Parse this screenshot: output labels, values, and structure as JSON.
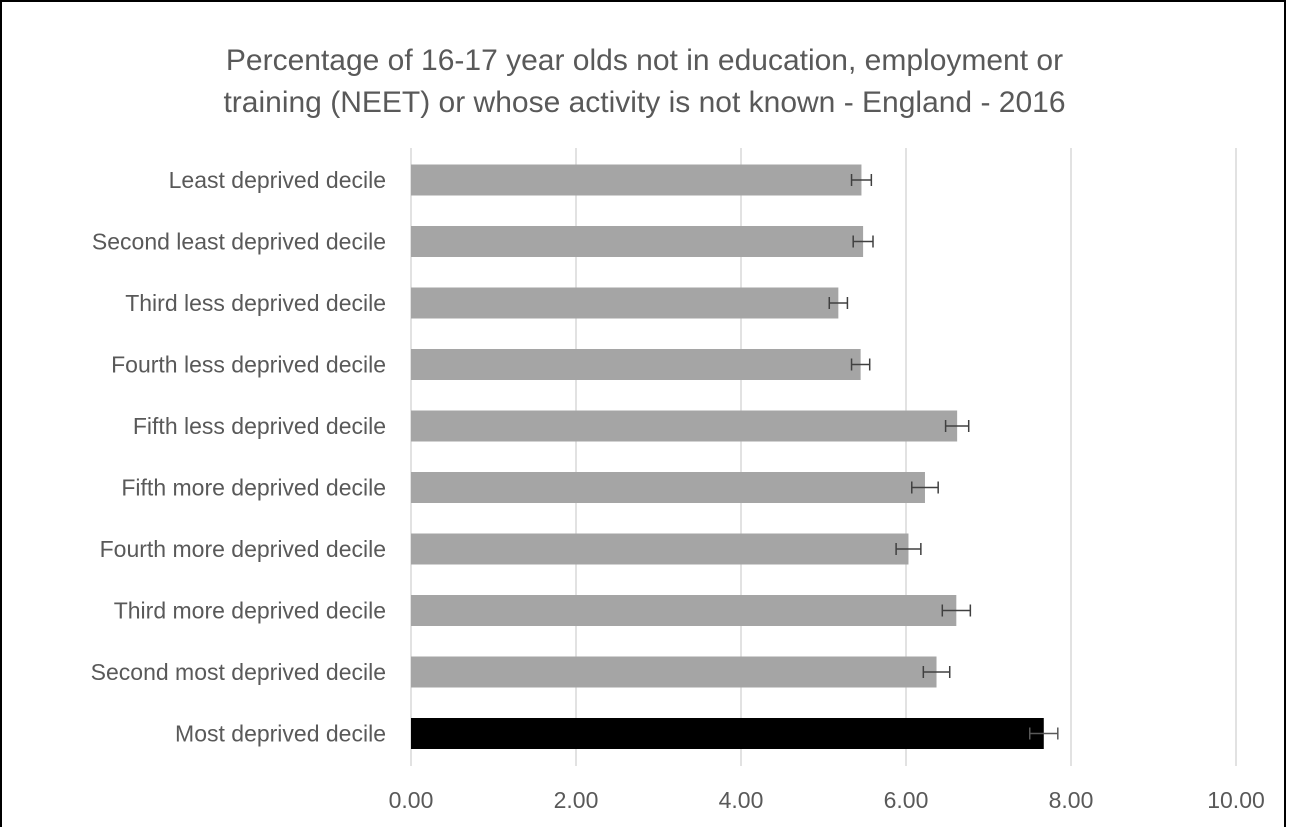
{
  "chart_data": {
    "type": "bar",
    "orientation": "horizontal",
    "title": "Percentage of 16-17 year olds not in education, employment or training (NEET) or whose activity is not known - England - 2016",
    "title_lines": [
      "Percentage of 16-17 year olds not in education, employment or",
      "training (NEET) or whose activity is not known - England - 2016"
    ],
    "xlabel": "",
    "ylabel": "",
    "xlim": [
      0,
      10
    ],
    "x_ticks": [
      "0.00",
      "2.00",
      "4.00",
      "6.00",
      "8.00",
      "10.00"
    ],
    "grid": true,
    "error_bars": true,
    "categories": [
      "Least deprived decile",
      "Second least deprived decile",
      "Third less deprived decile",
      "Fourth less deprived decile",
      "Fifth less deprived decile",
      "Fifth more deprived decile",
      "Fourth more deprived decile",
      "Third more deprived decile",
      "Second most deprived decile",
      "Most deprived decile"
    ],
    "values": [
      5.46,
      5.48,
      5.18,
      5.45,
      6.62,
      6.23,
      6.03,
      6.61,
      6.37,
      7.67
    ],
    "error": [
      0.12,
      0.12,
      0.11,
      0.11,
      0.14,
      0.16,
      0.15,
      0.17,
      0.16,
      0.17
    ],
    "colors": {
      "bar": "#a5a5a5",
      "highlight": "#000000",
      "grid": "#d9d9d9",
      "text": "#595959",
      "error": "#404040"
    },
    "highlight_index": 9
  }
}
